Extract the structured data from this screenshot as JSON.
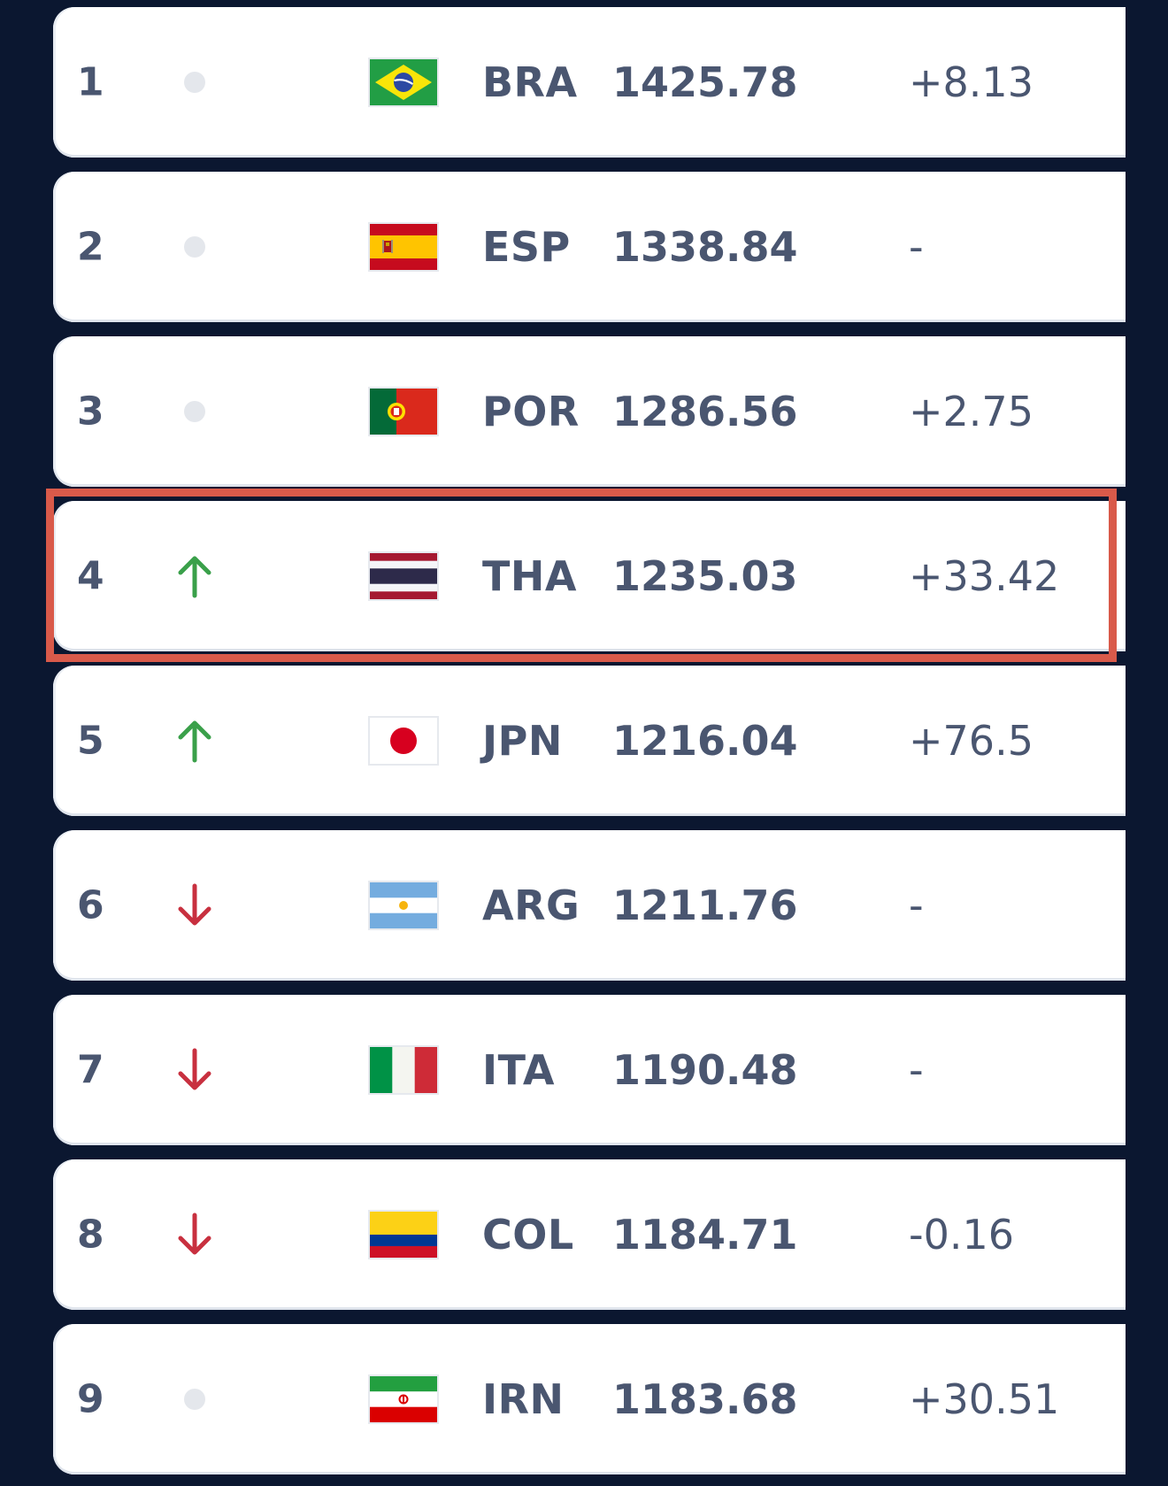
{
  "colors": {
    "page_background": "#0b1730",
    "row_background": "#ffffff",
    "text": "#4a5670",
    "up": "#3aa04a",
    "down": "#c8303f",
    "no_change_dot": "#e4e7ec",
    "highlight": "#d95a4a"
  },
  "rankings": [
    {
      "rank": "1",
      "trend": "none",
      "flag": "brazil-flag",
      "code": "BRA",
      "points": "1425.78",
      "change": "+8.13"
    },
    {
      "rank": "2",
      "trend": "none",
      "flag": "spain-flag",
      "code": "ESP",
      "points": "1338.84",
      "change": "-"
    },
    {
      "rank": "3",
      "trend": "none",
      "flag": "portugal-flag",
      "code": "POR",
      "points": "1286.56",
      "change": "+2.75"
    },
    {
      "rank": "4",
      "trend": "up",
      "flag": "thailand-flag",
      "code": "THA",
      "points": "1235.03",
      "change": "+33.42",
      "highlighted": true
    },
    {
      "rank": "5",
      "trend": "up",
      "flag": "japan-flag",
      "code": "JPN",
      "points": "1216.04",
      "change": "+76.5"
    },
    {
      "rank": "6",
      "trend": "down",
      "flag": "argentina-flag",
      "code": "ARG",
      "points": "1211.76",
      "change": "-"
    },
    {
      "rank": "7",
      "trend": "down",
      "flag": "italy-flag",
      "code": "ITA",
      "points": "1190.48",
      "change": "-"
    },
    {
      "rank": "8",
      "trend": "down",
      "flag": "colombia-flag",
      "code": "COL",
      "points": "1184.71",
      "change": "-0.16"
    },
    {
      "rank": "9",
      "trend": "none",
      "flag": "iran-flag",
      "code": "IRN",
      "points": "1183.68",
      "change": "+30.51"
    }
  ]
}
